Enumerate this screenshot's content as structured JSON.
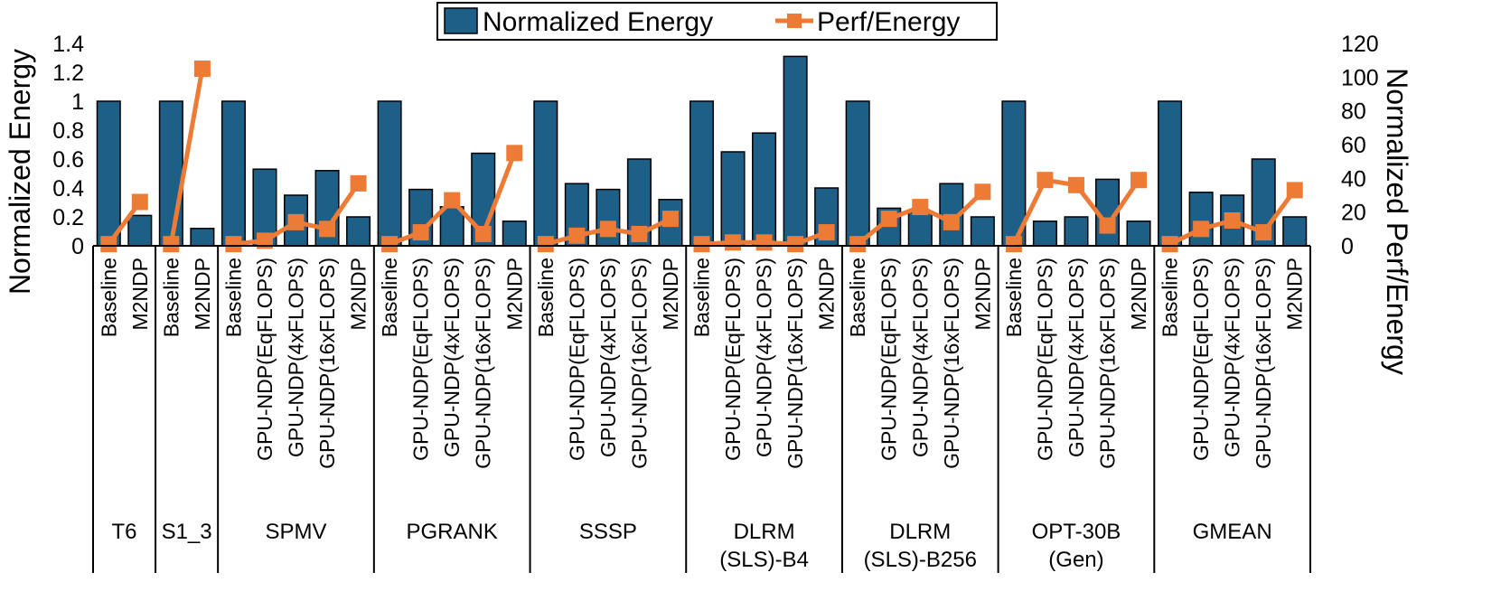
{
  "chart_data": {
    "type": "bar",
    "legend": {
      "position": "top-center",
      "entries": [
        "Normalized Energy",
        "Perf/Energy"
      ]
    },
    "ylabel_left": "Normalized Energy",
    "ylabel_right": "Normalized Perf/Energy",
    "ylim_left": [
      0,
      1.4
    ],
    "ylim_right": [
      0,
      120
    ],
    "yticks_left": [
      "0",
      "0.2",
      "0.4",
      "0.6",
      "0.8",
      "1",
      "1.2",
      "1.4"
    ],
    "yticks_right": [
      "0",
      "20",
      "40",
      "60",
      "80",
      "100",
      "120"
    ],
    "colors": {
      "bar": "#1d5f86",
      "line": "#ee7b35"
    },
    "groups": [
      {
        "label": [
          "T6"
        ],
        "categories": [
          "Baseline",
          "M2NDP"
        ],
        "energy": [
          1.0,
          0.21
        ],
        "perf_energy": [
          1,
          26
        ]
      },
      {
        "label": [
          "S1_3"
        ],
        "categories": [
          "Baseline",
          "M2NDP"
        ],
        "energy": [
          1.0,
          0.12
        ],
        "perf_energy": [
          1,
          105
        ]
      },
      {
        "label": [
          "SPMV"
        ],
        "categories": [
          "Baseline",
          "GPU-NDP(EqFLOPS)",
          "GPU-NDP(4xFLOPS)",
          "GPU-NDP(16xFLOPS)",
          "M2NDP"
        ],
        "energy": [
          1.0,
          0.53,
          0.35,
          0.52,
          0.2
        ],
        "perf_energy": [
          1,
          3,
          14,
          10,
          37
        ]
      },
      {
        "label": [
          "PGRANK"
        ],
        "categories": [
          "Baseline",
          "GPU-NDP(EqFLOPS)",
          "GPU-NDP(4xFLOPS)",
          "GPU-NDP(16xFLOPS)",
          "M2NDP"
        ],
        "energy": [
          1.0,
          0.39,
          0.27,
          0.64,
          0.17
        ],
        "perf_energy": [
          1,
          8,
          27,
          7,
          55
        ]
      },
      {
        "label": [
          "SSSP"
        ],
        "categories": [
          "Baseline",
          "GPU-NDP(EqFLOPS)",
          "GPU-NDP(4xFLOPS)",
          "GPU-NDP(16xFLOPS)",
          "M2NDP"
        ],
        "energy": [
          1.0,
          0.43,
          0.39,
          0.6,
          0.32
        ],
        "perf_energy": [
          1,
          6,
          10,
          7,
          16
        ]
      },
      {
        "label": [
          "DLRM",
          "(SLS)-B4"
        ],
        "categories": [
          "Baseline",
          "GPU-NDP(EqFLOPS)",
          "GPU-NDP(4xFLOPS)",
          "GPU-NDP(16xFLOPS)",
          "M2NDP"
        ],
        "energy": [
          1.0,
          0.65,
          0.78,
          1.31,
          0.4
        ],
        "perf_energy": [
          1,
          2,
          2,
          1,
          8
        ]
      },
      {
        "label": [
          "DLRM",
          "(SLS)-B256"
        ],
        "categories": [
          "Baseline",
          "GPU-NDP(EqFLOPS)",
          "GPU-NDP(4xFLOPS)",
          "GPU-NDP(16xFLOPS)",
          "M2NDP"
        ],
        "energy": [
          1.0,
          0.26,
          0.23,
          0.43,
          0.2
        ],
        "perf_energy": [
          1,
          16,
          23,
          14,
          32
        ]
      },
      {
        "label": [
          "OPT-30B",
          "(Gen)"
        ],
        "categories": [
          "Baseline",
          "GPU-NDP(EqFLOPS)",
          "GPU-NDP(4xFLOPS)",
          "GPU-NDP(16xFLOPS)",
          "M2NDP"
        ],
        "energy": [
          1.0,
          0.17,
          0.2,
          0.46,
          0.17
        ],
        "perf_energy": [
          1,
          39,
          36,
          12,
          39
        ]
      },
      {
        "label": [
          "GMEAN"
        ],
        "categories": [
          "Baseline",
          "GPU-NDP(EqFLOPS)",
          "GPU-NDP(4xFLOPS)",
          "GPU-NDP(16xFLOPS)",
          "M2NDP"
        ],
        "energy": [
          1.0,
          0.37,
          0.35,
          0.6,
          0.2
        ],
        "perf_energy": [
          1,
          10,
          15,
          8,
          33
        ]
      }
    ]
  }
}
